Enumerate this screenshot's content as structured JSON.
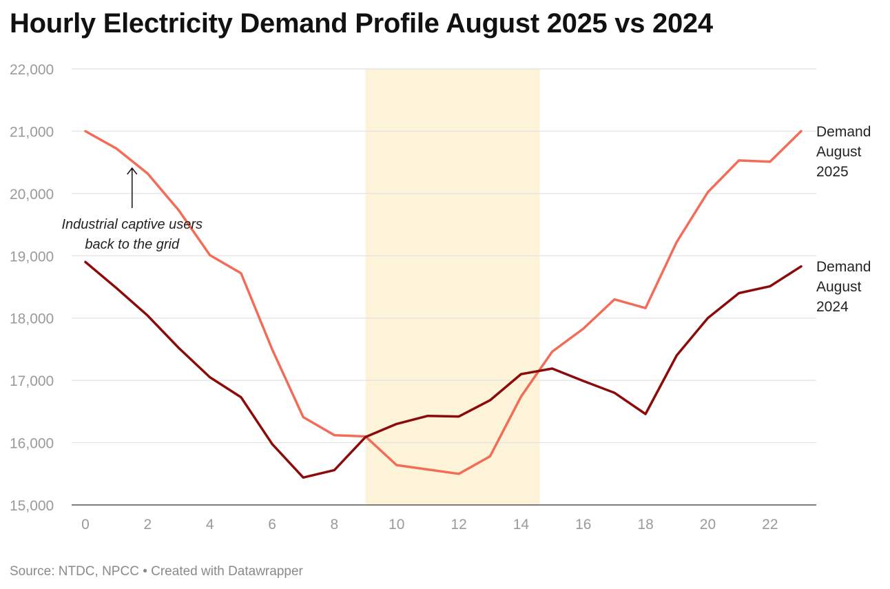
{
  "title": "Hourly Electricity Demand Profile August 2025 vs 2024",
  "source": "Source: NTDC, NPCC • Created with Datawrapper",
  "chart_data": {
    "type": "line",
    "xlabel": "",
    "ylabel": "",
    "xlim": [
      0,
      23
    ],
    "ylim": [
      15000,
      22000
    ],
    "x_ticks": [
      0,
      2,
      4,
      6,
      8,
      10,
      12,
      14,
      16,
      18,
      20,
      22
    ],
    "y_ticks": [
      15000,
      16000,
      17000,
      18000,
      19000,
      20000,
      21000,
      22000
    ],
    "y_tick_labels": [
      "15,000",
      "16,000",
      "17,000",
      "18,000",
      "19,000",
      "20,000",
      "21,000",
      "22,000"
    ],
    "grid": "horizontal",
    "highlight_band": {
      "x_from": 9,
      "x_to": 14.6,
      "color": "#fdf3d8"
    },
    "x": [
      0,
      1,
      2,
      3,
      4,
      5,
      6,
      7,
      8,
      9,
      10,
      11,
      12,
      13,
      14,
      15,
      16,
      17,
      18,
      19,
      20,
      21,
      22,
      23
    ],
    "series": [
      {
        "name": "Demand August 2025",
        "label_lines": [
          "Demand",
          "August",
          "2025"
        ],
        "color": "#f26c58",
        "values": [
          21000,
          20720,
          20320,
          19730,
          19010,
          18720,
          17500,
          16410,
          16120,
          16100,
          15640,
          15570,
          15500,
          15780,
          16740,
          17460,
          17830,
          18300,
          18160,
          19220,
          20020,
          20530,
          20510,
          21000
        ]
      },
      {
        "name": "Demand August 2024",
        "label_lines": [
          "Demand",
          "August",
          "2024"
        ],
        "color": "#8b0a0a",
        "values": [
          18900,
          18480,
          18040,
          17520,
          17050,
          16730,
          15980,
          15440,
          15560,
          16090,
          16300,
          16430,
          16420,
          16680,
          17100,
          17190,
          16990,
          16800,
          16460,
          17400,
          18000,
          18400,
          18510,
          18830
        ]
      }
    ],
    "annotation": {
      "lines": [
        "Industrial captive users",
        "back to the grid"
      ],
      "x": 1.5,
      "y": 20450
    }
  }
}
